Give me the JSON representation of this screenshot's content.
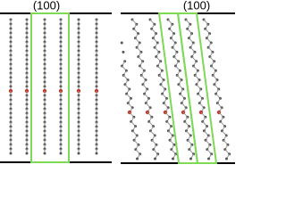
{
  "panels": [
    {
      "label": "(100)"
    },
    {
      "label": "(100)"
    }
  ]
}
